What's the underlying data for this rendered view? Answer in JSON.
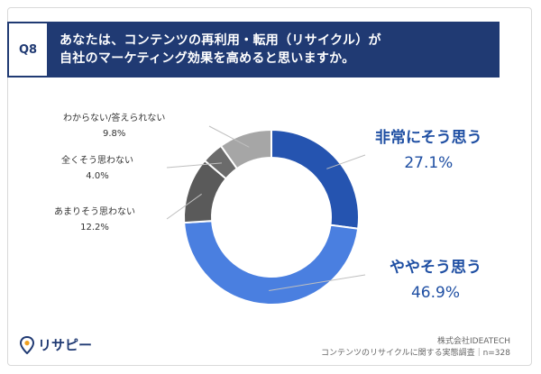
{
  "question": {
    "number": "Q8",
    "line1": "あなたは、コンテンツの再利用・転用（リサイクル）が",
    "line2": "自社のマーケティング効果を高めると思いますか。"
  },
  "colors": {
    "header_bg": "#203a73",
    "accent_text": "#1f4fa3"
  },
  "chart_data": {
    "type": "pie",
    "subtype": "donut",
    "slices": [
      {
        "label": "非常にそう思う",
        "value": 27.1,
        "value_label": "27.1%",
        "color": "#2554b0"
      },
      {
        "label": "ややそう思う",
        "value": 46.9,
        "value_label": "46.9%",
        "color": "#4a7fe0"
      },
      {
        "label": "あまりそう思わない",
        "value": 12.2,
        "value_label": "12.2%",
        "color": "#5a5a5a"
      },
      {
        "label": "全くそう思わない",
        "value": 4.0,
        "value_label": "4.0%",
        "color": "#6b6b6b"
      },
      {
        "label": "わからない/答えられない",
        "value": 9.8,
        "value_label": "9.8%",
        "color": "#a6a6a6"
      }
    ]
  },
  "footer": {
    "logo_text": "リサピー",
    "company": "株式会社IDEATECH",
    "survey": "コンテンツのリサイクルに関する実態調査｜n=328"
  }
}
